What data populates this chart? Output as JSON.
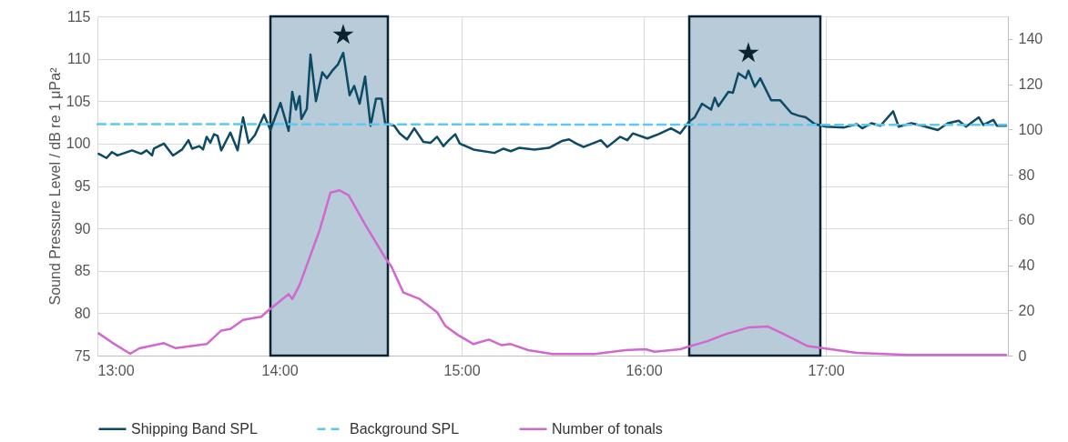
{
  "chart_data": {
    "type": "line",
    "ylabel": "Sound Pressure Level / dB re 1 μPa²",
    "xlim": [
      13,
      18
    ],
    "xticks": [
      {
        "value": 13,
        "label": "13:00"
      },
      {
        "value": 14,
        "label": "14:00"
      },
      {
        "value": 15,
        "label": "15:00"
      },
      {
        "value": 16,
        "label": "16:00"
      },
      {
        "value": 17,
        "label": "17:00"
      },
      {
        "value": 18,
        "label": null
      }
    ],
    "ylim": [
      75,
      115
    ],
    "yticks": [
      75,
      80,
      85,
      90,
      95,
      100,
      105,
      110,
      115
    ],
    "y2lim": [
      0,
      150
    ],
    "y2ticks": [
      0,
      20,
      40,
      60,
      80,
      100,
      120,
      140
    ],
    "grid": true,
    "legend": "bottom",
    "marker": "none",
    "series": [
      {
        "name": "Shipping Band SPL",
        "color": "#0d4a66",
        "line_style": "solid",
        "x": [
          13.007,
          13.05,
          13.08,
          13.11,
          13.19,
          13.24,
          13.27,
          13.3,
          13.31,
          13.365,
          13.415,
          13.465,
          13.5,
          13.52,
          13.56,
          13.58,
          13.6,
          13.62,
          13.64,
          13.66,
          13.68,
          13.73,
          13.77,
          13.8,
          13.83,
          13.865,
          13.915,
          13.95,
          14.005,
          14.05,
          14.07,
          14.09,
          14.11,
          14.12,
          14.15,
          14.17,
          14.2,
          14.235,
          14.26,
          14.29,
          14.32,
          14.35,
          14.385,
          14.41,
          14.44,
          14.47,
          14.5,
          14.53,
          14.56,
          14.58,
          14.63,
          14.66,
          14.7,
          14.74,
          14.79,
          14.83,
          14.865,
          14.9,
          14.93,
          14.965,
          14.99,
          15.065,
          15.18,
          15.23,
          15.27,
          15.315,
          15.4,
          15.48,
          15.55,
          15.59,
          15.63,
          15.67,
          15.765,
          15.8,
          15.87,
          15.91,
          15.94,
          16.02,
          16.08,
          16.15,
          16.2,
          16.25,
          16.28,
          16.32,
          16.37,
          16.39,
          16.41,
          16.465,
          16.49,
          16.52,
          16.56,
          16.575,
          16.61,
          16.64,
          16.7,
          16.75,
          16.81,
          16.85,
          16.89,
          16.94,
          17.0,
          17.1,
          17.17,
          17.2,
          17.25,
          17.3,
          17.37,
          17.4,
          17.47,
          17.53,
          17.615,
          17.67,
          17.73,
          17.77,
          17.84,
          17.865,
          17.92,
          17.94,
          17.99
        ],
        "values": [
          98.8,
          98.3,
          99.0,
          98.6,
          99.2,
          98.8,
          99.2,
          98.6,
          99.4,
          100.0,
          98.6,
          99.3,
          100.4,
          99.4,
          99.7,
          99.3,
          100.8,
          100.1,
          101.1,
          100.9,
          99.2,
          101.3,
          99.2,
          103.1,
          100.1,
          101.0,
          103.4,
          101.6,
          104.8,
          101.5,
          106.1,
          104.0,
          105.6,
          102.9,
          104.1,
          110.5,
          105.0,
          108.4,
          107.7,
          108.6,
          109.3,
          110.7,
          105.7,
          106.8,
          104.7,
          107.9,
          102.1,
          105.3,
          105.3,
          102.4,
          102.1,
          101.2,
          100.5,
          101.8,
          100.2,
          100.1,
          100.8,
          99.7,
          100.4,
          101.1,
          100.0,
          99.3,
          98.9,
          99.4,
          99.1,
          99.5,
          99.3,
          99.5,
          100.3,
          100.5,
          100.0,
          99.6,
          100.4,
          99.6,
          100.8,
          100.4,
          101.2,
          100.6,
          101.1,
          101.8,
          101.2,
          102.6,
          103.1,
          104.7,
          104.0,
          105.4,
          104.4,
          106.1,
          106.0,
          108.3,
          107.7,
          108.6,
          106.7,
          107.7,
          105.1,
          105.1,
          103.6,
          103.3,
          103.1,
          102.3,
          102.0,
          101.9,
          102.3,
          101.8,
          102.4,
          102.1,
          103.8,
          102.0,
          102.4,
          102.1,
          101.6,
          102.4,
          102.7,
          102.0,
          103.1,
          102.2,
          102.8,
          102.1,
          102.1
        ]
      },
      {
        "name": "Background SPL",
        "color": "#5ec8ee",
        "line_style": "dashed",
        "x": [
          13,
          17.99
        ],
        "values": [
          102.3,
          102.2
        ]
      },
      {
        "name": "Number of tonals",
        "color": "#d068d0",
        "line_style": "solid",
        "axis": "y2",
        "x": [
          13.007,
          13.08,
          13.18,
          13.23,
          13.365,
          13.43,
          13.6,
          13.68,
          13.73,
          13.8,
          13.9,
          13.93,
          14.0,
          14.05,
          14.07,
          14.11,
          14.165,
          14.22,
          14.28,
          14.33,
          14.38,
          14.47,
          14.58,
          14.615,
          14.68,
          14.765,
          14.865,
          14.91,
          14.98,
          15.065,
          15.15,
          15.22,
          15.27,
          15.365,
          15.5,
          15.73,
          15.9,
          16.01,
          16.06,
          16.2,
          16.265,
          16.35,
          16.45,
          16.58,
          16.68,
          16.78,
          16.9,
          17.0,
          17.17,
          17.45,
          17.99
        ],
        "values": [
          9.8,
          5.8,
          0.8,
          3.2,
          5.5,
          3.3,
          5.1,
          11.1,
          11.8,
          15.8,
          17.2,
          19.4,
          23.9,
          27.2,
          25.0,
          31.2,
          43.3,
          55.4,
          72.1,
          73.1,
          70.8,
          58.0,
          43.3,
          39.3,
          27.9,
          25.2,
          19.2,
          13.2,
          9.1,
          5.1,
          7.1,
          4.6,
          5.1,
          2.4,
          0.7,
          0.7,
          2.4,
          2.8,
          1.7,
          2.8,
          4.4,
          6.4,
          9.5,
          12.5,
          12.9,
          9.1,
          4.2,
          3.1,
          1.2,
          0.3,
          0.3
        ]
      }
    ],
    "bands": [
      {
        "axis": "x",
        "from": 13.95,
        "to": 14.595,
        "color": "#b7ccd8"
      },
      {
        "axis": "x",
        "from": 16.25,
        "to": 16.97,
        "color": "#b7ccd8"
      }
    ],
    "annotations": [
      {
        "text": "★",
        "x": 14.35,
        "y": 110.7
      },
      {
        "text": "★",
        "x": 16.575,
        "y": 108.6
      }
    ]
  }
}
